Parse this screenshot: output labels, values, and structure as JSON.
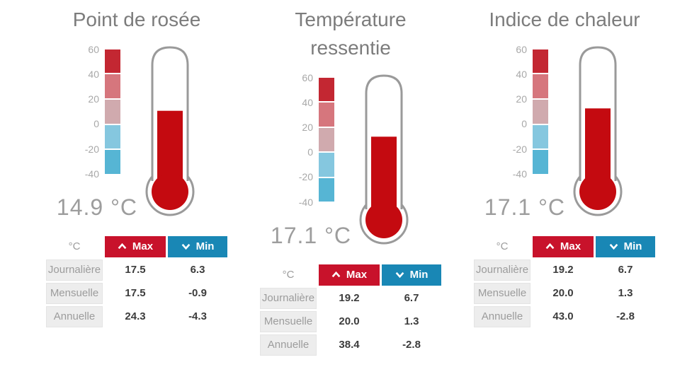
{
  "colors": {
    "title_gray": "#7c7c7c",
    "value_gray": "#9d9d9d",
    "scale_label_gray": "#a8a8a8",
    "thermo_outline": "#9a9a9a",
    "thermo_fill_red": "#c40a10",
    "max_red": "#c8122b",
    "min_blue": "#1987b5",
    "row_label_bg": "#ededed",
    "row_label_text": "#9c9c9c",
    "cell_value_text": "#3c3c3c",
    "scale_segments": [
      "#c32732",
      "#d6767d",
      "#d0aaae",
      "#85c7df",
      "#56b5d4"
    ]
  },
  "scale_ticks": [
    "60",
    "40",
    "20",
    "0",
    "-20",
    "-40"
  ],
  "table_header": {
    "unit": "°C",
    "max_label": "Max",
    "min_label": "Min"
  },
  "icons": {
    "max": "chevron-up",
    "min": "chevron-down"
  },
  "panels": [
    {
      "title": "Point de rosée",
      "current_value": "14.9 °C",
      "value_num": 14.9,
      "rows": [
        {
          "label": "Journalière",
          "max": "17.5",
          "min": "6.3"
        },
        {
          "label": "Mensuelle",
          "max": "17.5",
          "min": "-0.9"
        },
        {
          "label": "Annuelle",
          "max": "24.3",
          "min": "-4.3"
        }
      ]
    },
    {
      "title": "Température ressentie",
      "current_value": "17.1 °C",
      "value_num": 17.1,
      "rows": [
        {
          "label": "Journalière",
          "max": "19.2",
          "min": "6.7"
        },
        {
          "label": "Mensuelle",
          "max": "20.0",
          "min": "1.3"
        },
        {
          "label": "Annuelle",
          "max": "38.4",
          "min": "-2.8"
        }
      ]
    },
    {
      "title": "Indice de chaleur",
      "current_value": "17.1 °C",
      "value_num": 17.1,
      "rows": [
        {
          "label": "Journalière",
          "max": "19.2",
          "min": "6.7"
        },
        {
          "label": "Mensuelle",
          "max": "20.0",
          "min": "1.3"
        },
        {
          "label": "Annuelle",
          "max": "43.0",
          "min": "-2.8"
        }
      ]
    }
  ],
  "chart_data": [
    {
      "type": "table",
      "title": "Point de rosée",
      "gauge": {
        "kind": "thermometer",
        "value_c": 14.9,
        "scale_range_c": [
          -40,
          60
        ],
        "scale_ticks_c": [
          60,
          40,
          20,
          0,
          -20,
          -40
        ]
      },
      "columns": [
        "°C",
        "Max",
        "Min"
      ],
      "rows": [
        {
          "period": "Journalière",
          "max_c": 17.5,
          "min_c": 6.3
        },
        {
          "period": "Mensuelle",
          "max_c": 17.5,
          "min_c": -0.9
        },
        {
          "period": "Annuelle",
          "max_c": 24.3,
          "min_c": -4.3
        }
      ]
    },
    {
      "type": "table",
      "title": "Température ressentie",
      "gauge": {
        "kind": "thermometer",
        "value_c": 17.1,
        "scale_range_c": [
          -40,
          60
        ],
        "scale_ticks_c": [
          60,
          40,
          20,
          0,
          -20,
          -40
        ]
      },
      "columns": [
        "°C",
        "Max",
        "Min"
      ],
      "rows": [
        {
          "period": "Journalière",
          "max_c": 19.2,
          "min_c": 6.7
        },
        {
          "period": "Mensuelle",
          "max_c": 20.0,
          "min_c": 1.3
        },
        {
          "period": "Annuelle",
          "max_c": 38.4,
          "min_c": -2.8
        }
      ]
    },
    {
      "type": "table",
      "title": "Indice de chaleur",
      "gauge": {
        "kind": "thermometer",
        "value_c": 17.1,
        "scale_range_c": [
          -40,
          60
        ],
        "scale_ticks_c": [
          60,
          40,
          20,
          0,
          -20,
          -40
        ]
      },
      "columns": [
        "°C",
        "Max",
        "Min"
      ],
      "rows": [
        {
          "period": "Journalière",
          "max_c": 19.2,
          "min_c": 6.7
        },
        {
          "period": "Mensuelle",
          "max_c": 20.0,
          "min_c": 1.3
        },
        {
          "period": "Annuelle",
          "max_c": 43.0,
          "min_c": -2.8
        }
      ]
    }
  ]
}
